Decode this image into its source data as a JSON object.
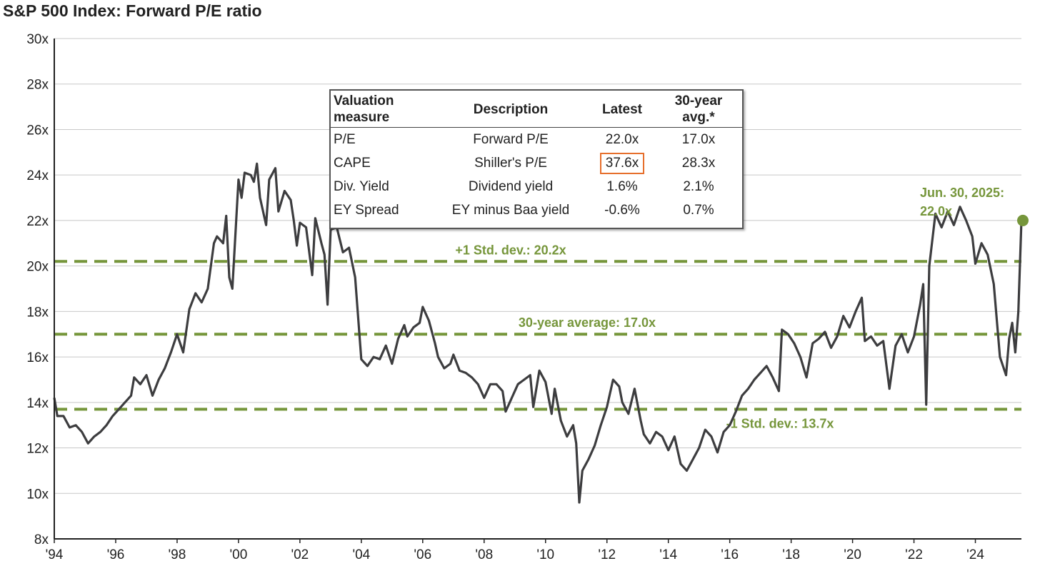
{
  "title": "S&P 500 Index: Forward P/E ratio",
  "colors": {
    "line": "#3d3d3f",
    "accent": "#76963b",
    "grid": "#c8c8c8",
    "highlight": "#e66f2c"
  },
  "table": {
    "headers": {
      "measure": "Valuation\nmeasure",
      "description": "Description",
      "latest": "Latest",
      "avg": "30-year avg.*"
    },
    "rows": [
      {
        "measure": "P/E",
        "description": "Forward P/E",
        "latest": "22.0x",
        "avg": "17.0x"
      },
      {
        "measure": "CAPE",
        "description": "Shiller's P/E",
        "latest": "37.6x",
        "avg": "28.3x"
      },
      {
        "measure": "Div. Yield",
        "description": "Dividend yield",
        "latest": "1.6%",
        "avg": "2.1%"
      },
      {
        "measure": "EY Spread",
        "description": "EY minus Baa yield",
        "latest": "-0.6%",
        "avg": "0.7%"
      }
    ],
    "highlighted_cell": "CAPE latest"
  },
  "chart_data": {
    "type": "line",
    "title": "S&P 500 Index: Forward P/E ratio",
    "xlim": [
      1994,
      2025.5
    ],
    "ylim": [
      8,
      30
    ],
    "x_ticks": [
      "'94",
      "'96",
      "'98",
      "'00",
      "'02",
      "'04",
      "'06",
      "'08",
      "'10",
      "'12",
      "'14",
      "'16",
      "'18",
      "'20",
      "'22",
      "'24"
    ],
    "y_ticks": [
      "8x",
      "10x",
      "12x",
      "14x",
      "16x",
      "18x",
      "20x",
      "22x",
      "24x",
      "26x",
      "28x",
      "30x"
    ],
    "grid": "horizontal",
    "reference_lines": [
      {
        "label": "+1 Std. dev.: 20.2x",
        "value": 20.2
      },
      {
        "label": "30-year average: 17.0x",
        "value": 17.0
      },
      {
        "label": "-1 Std. dev.: 13.7x",
        "value": 13.7
      }
    ],
    "end_point": {
      "label_line1": "Jun. 30, 2025:",
      "label_line2": "22.0x",
      "x": 2025.5,
      "y": 22.0
    },
    "series": [
      {
        "values": [
          [
            1994.0,
            14.2
          ],
          [
            1994.1,
            13.4
          ],
          [
            1994.3,
            13.4
          ],
          [
            1994.5,
            12.9
          ],
          [
            1994.7,
            13.0
          ],
          [
            1994.9,
            12.7
          ],
          [
            1995.1,
            12.2
          ],
          [
            1995.3,
            12.5
          ],
          [
            1995.5,
            12.7
          ],
          [
            1995.7,
            13.0
          ],
          [
            1995.9,
            13.4
          ],
          [
            1996.1,
            13.7
          ],
          [
            1996.3,
            14.0
          ],
          [
            1996.5,
            14.3
          ],
          [
            1996.6,
            15.1
          ],
          [
            1996.8,
            14.8
          ],
          [
            1997.0,
            15.2
          ],
          [
            1997.2,
            14.3
          ],
          [
            1997.4,
            15.0
          ],
          [
            1997.6,
            15.5
          ],
          [
            1997.8,
            16.2
          ],
          [
            1998.0,
            17.0
          ],
          [
            1998.2,
            16.2
          ],
          [
            1998.4,
            18.1
          ],
          [
            1998.6,
            18.8
          ],
          [
            1998.8,
            18.4
          ],
          [
            1999.0,
            19.0
          ],
          [
            1999.2,
            21.0
          ],
          [
            1999.3,
            21.3
          ],
          [
            1999.5,
            21.0
          ],
          [
            1999.6,
            22.2
          ],
          [
            1999.7,
            19.5
          ],
          [
            1999.8,
            19.0
          ],
          [
            2000.0,
            23.8
          ],
          [
            2000.1,
            23.0
          ],
          [
            2000.2,
            24.1
          ],
          [
            2000.4,
            24.0
          ],
          [
            2000.5,
            23.7
          ],
          [
            2000.6,
            24.5
          ],
          [
            2000.7,
            23.0
          ],
          [
            2000.9,
            21.8
          ],
          [
            2001.0,
            23.8
          ],
          [
            2001.2,
            24.3
          ],
          [
            2001.3,
            22.4
          ],
          [
            2001.5,
            23.3
          ],
          [
            2001.7,
            22.9
          ],
          [
            2001.8,
            22.0
          ],
          [
            2001.9,
            20.9
          ],
          [
            2002.0,
            21.9
          ],
          [
            2002.2,
            21.7
          ],
          [
            2002.4,
            19.6
          ],
          [
            2002.5,
            22.1
          ],
          [
            2002.7,
            21.0
          ],
          [
            2002.8,
            20.5
          ],
          [
            2002.9,
            18.3
          ],
          [
            2003.0,
            21.6
          ],
          [
            2003.2,
            21.7
          ],
          [
            2003.4,
            20.6
          ],
          [
            2003.6,
            20.8
          ],
          [
            2003.8,
            19.5
          ],
          [
            2004.0,
            15.9
          ],
          [
            2004.2,
            15.6
          ],
          [
            2004.4,
            16.0
          ],
          [
            2004.6,
            15.9
          ],
          [
            2004.8,
            16.5
          ],
          [
            2005.0,
            15.7
          ],
          [
            2005.2,
            16.8
          ],
          [
            2005.4,
            17.4
          ],
          [
            2005.5,
            16.9
          ],
          [
            2005.7,
            17.3
          ],
          [
            2005.9,
            17.5
          ],
          [
            2006.0,
            18.2
          ],
          [
            2006.2,
            17.6
          ],
          [
            2006.4,
            16.6
          ],
          [
            2006.5,
            16.0
          ],
          [
            2006.7,
            15.5
          ],
          [
            2006.9,
            15.7
          ],
          [
            2007.0,
            16.1
          ],
          [
            2007.2,
            15.4
          ],
          [
            2007.4,
            15.3
          ],
          [
            2007.6,
            15.1
          ],
          [
            2007.8,
            14.8
          ],
          [
            2008.0,
            14.2
          ],
          [
            2008.2,
            14.8
          ],
          [
            2008.4,
            14.8
          ],
          [
            2008.6,
            14.5
          ],
          [
            2008.7,
            13.6
          ],
          [
            2008.9,
            14.2
          ],
          [
            2009.1,
            14.8
          ],
          [
            2009.3,
            15.0
          ],
          [
            2009.5,
            15.2
          ],
          [
            2009.6,
            13.8
          ],
          [
            2009.8,
            15.4
          ],
          [
            2010.0,
            14.9
          ],
          [
            2010.2,
            13.5
          ],
          [
            2010.3,
            14.6
          ],
          [
            2010.5,
            13.2
          ],
          [
            2010.7,
            12.5
          ],
          [
            2010.9,
            13.0
          ],
          [
            2011.0,
            12.2
          ],
          [
            2011.1,
            9.6
          ],
          [
            2011.2,
            11.0
          ],
          [
            2011.4,
            11.5
          ],
          [
            2011.6,
            12.1
          ],
          [
            2011.8,
            13.0
          ],
          [
            2012.0,
            13.8
          ],
          [
            2012.2,
            15.0
          ],
          [
            2012.4,
            14.7
          ],
          [
            2012.5,
            14.0
          ],
          [
            2012.7,
            13.5
          ],
          [
            2012.9,
            14.6
          ],
          [
            2013.1,
            13.2
          ],
          [
            2013.2,
            12.6
          ],
          [
            2013.4,
            12.2
          ],
          [
            2013.6,
            12.7
          ],
          [
            2013.8,
            12.5
          ],
          [
            2014.0,
            11.9
          ],
          [
            2014.2,
            12.5
          ],
          [
            2014.4,
            11.3
          ],
          [
            2014.6,
            11.0
          ],
          [
            2014.8,
            11.5
          ],
          [
            2015.0,
            12.0
          ],
          [
            2015.2,
            12.8
          ],
          [
            2015.4,
            12.5
          ],
          [
            2015.6,
            11.8
          ],
          [
            2015.8,
            12.7
          ],
          [
            2016.0,
            13.0
          ],
          [
            2016.2,
            13.6
          ],
          [
            2016.4,
            14.3
          ],
          [
            2016.6,
            14.6
          ],
          [
            2016.8,
            15.0
          ],
          [
            2017.0,
            15.3
          ],
          [
            2017.2,
            15.6
          ],
          [
            2017.4,
            15.1
          ],
          [
            2017.6,
            14.5
          ],
          [
            2017.7,
            17.2
          ],
          [
            2017.9,
            17.0
          ],
          [
            2018.1,
            16.6
          ],
          [
            2018.3,
            16.0
          ],
          [
            2018.5,
            15.1
          ],
          [
            2018.7,
            16.6
          ],
          [
            2018.9,
            16.8
          ],
          [
            2019.1,
            17.1
          ],
          [
            2019.3,
            16.4
          ],
          [
            2019.5,
            16.9
          ],
          [
            2019.7,
            17.8
          ],
          [
            2019.9,
            17.3
          ],
          [
            2020.1,
            18.0
          ],
          [
            2020.3,
            18.6
          ],
          [
            2020.4,
            16.7
          ],
          [
            2020.6,
            16.9
          ],
          [
            2020.8,
            16.5
          ],
          [
            2021.0,
            16.7
          ],
          [
            2021.2,
            14.6
          ],
          [
            2021.4,
            16.5
          ],
          [
            2021.6,
            17.0
          ],
          [
            2021.8,
            16.2
          ],
          [
            2022.0,
            16.9
          ],
          [
            2022.2,
            18.3
          ],
          [
            2022.3,
            19.2
          ],
          [
            2022.4,
            13.9
          ],
          [
            2022.5,
            20.0
          ],
          [
            2022.7,
            22.3
          ],
          [
            2022.9,
            21.7
          ],
          [
            2023.1,
            22.4
          ],
          [
            2023.3,
            21.8
          ],
          [
            2023.5,
            22.6
          ],
          [
            2023.7,
            22.0
          ],
          [
            2023.9,
            21.3
          ],
          [
            2024.0,
            20.1
          ],
          [
            2024.2,
            21.0
          ],
          [
            2024.4,
            20.5
          ],
          [
            2024.6,
            19.2
          ],
          [
            2024.8,
            16.0
          ],
          [
            2025.0,
            15.2
          ],
          [
            2025.1,
            16.8
          ],
          [
            2025.2,
            17.5
          ],
          [
            2025.3,
            16.2
          ],
          [
            2025.4,
            18.0
          ],
          [
            2025.5,
            22.0
          ]
        ]
      }
    ]
  }
}
